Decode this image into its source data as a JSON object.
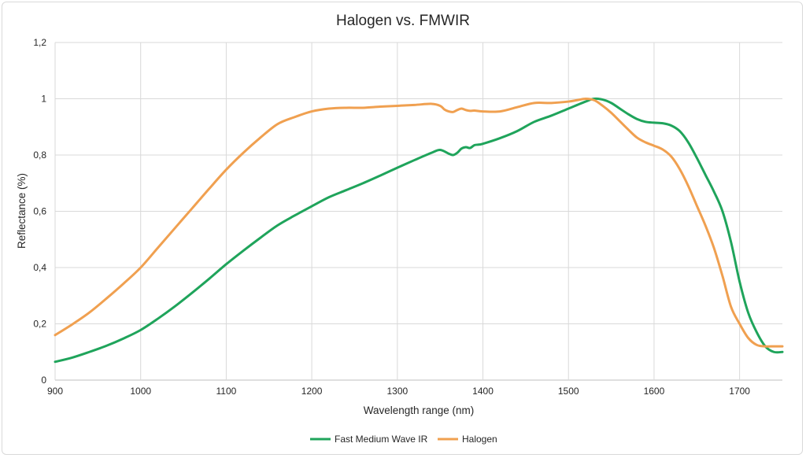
{
  "chart_data": {
    "type": "line",
    "title": "Halogen vs. FMWIR",
    "xlabel": "Wavelength range (nm)",
    "ylabel": "Reflectance (%)",
    "xlim": [
      900,
      1750
    ],
    "ylim": [
      0,
      1.2
    ],
    "x_ticks": [
      "900",
      "1000",
      "1100",
      "1200",
      "1300",
      "1400",
      "1500",
      "1600",
      "1700"
    ],
    "y_ticks": [
      "0",
      "0,2",
      "0,4",
      "0,6",
      "0,8",
      "1",
      "1,2"
    ],
    "grid": true,
    "legend_position": "bottom",
    "series": [
      {
        "name": "Fast Medium Wave IR",
        "color": "#1fa45b",
        "x": [
          900,
          920,
          940,
          960,
          980,
          1000,
          1020,
          1040,
          1060,
          1080,
          1100,
          1120,
          1140,
          1160,
          1180,
          1200,
          1220,
          1240,
          1260,
          1280,
          1300,
          1320,
          1340,
          1350,
          1360,
          1365,
          1370,
          1375,
          1380,
          1385,
          1390,
          1395,
          1400,
          1420,
          1440,
          1460,
          1480,
          1500,
          1520,
          1530,
          1540,
          1550,
          1560,
          1570,
          1580,
          1590,
          1600,
          1610,
          1620,
          1630,
          1640,
          1650,
          1660,
          1670,
          1680,
          1690,
          1700,
          1710,
          1720,
          1730,
          1740,
          1750
        ],
        "values": [
          0.065,
          0.08,
          0.1,
          0.122,
          0.148,
          0.178,
          0.218,
          0.262,
          0.31,
          0.36,
          0.412,
          0.46,
          0.506,
          0.55,
          0.585,
          0.618,
          0.65,
          0.675,
          0.7,
          0.727,
          0.755,
          0.782,
          0.808,
          0.818,
          0.805,
          0.8,
          0.808,
          0.823,
          0.828,
          0.825,
          0.835,
          0.837,
          0.84,
          0.86,
          0.885,
          0.918,
          0.94,
          0.965,
          0.99,
          1.0,
          0.997,
          0.985,
          0.965,
          0.945,
          0.928,
          0.918,
          0.915,
          0.913,
          0.905,
          0.885,
          0.845,
          0.79,
          0.73,
          0.67,
          0.6,
          0.49,
          0.35,
          0.24,
          0.17,
          0.12,
          0.1,
          0.1
        ]
      },
      {
        "name": "Halogen",
        "color": "#f0a050",
        "x": [
          900,
          920,
          940,
          960,
          980,
          1000,
          1020,
          1040,
          1060,
          1080,
          1100,
          1120,
          1140,
          1160,
          1180,
          1200,
          1220,
          1240,
          1260,
          1280,
          1300,
          1320,
          1340,
          1350,
          1355,
          1360,
          1365,
          1370,
          1375,
          1380,
          1385,
          1390,
          1400,
          1420,
          1440,
          1460,
          1480,
          1500,
          1510,
          1520,
          1530,
          1540,
          1550,
          1560,
          1570,
          1580,
          1590,
          1600,
          1610,
          1620,
          1630,
          1640,
          1650,
          1660,
          1670,
          1680,
          1690,
          1700,
          1710,
          1720,
          1730,
          1740,
          1750
        ],
        "values": [
          0.16,
          0.198,
          0.24,
          0.29,
          0.343,
          0.4,
          0.47,
          0.54,
          0.61,
          0.68,
          0.748,
          0.808,
          0.862,
          0.91,
          0.935,
          0.955,
          0.965,
          0.968,
          0.968,
          0.972,
          0.975,
          0.978,
          0.982,
          0.975,
          0.962,
          0.955,
          0.953,
          0.96,
          0.965,
          0.96,
          0.957,
          0.958,
          0.955,
          0.955,
          0.97,
          0.985,
          0.985,
          0.99,
          0.995,
          1.0,
          0.995,
          0.975,
          0.95,
          0.92,
          0.89,
          0.862,
          0.845,
          0.833,
          0.82,
          0.795,
          0.75,
          0.69,
          0.62,
          0.55,
          0.47,
          0.37,
          0.26,
          0.2,
          0.15,
          0.125,
          0.12,
          0.12,
          0.12
        ]
      }
    ]
  }
}
